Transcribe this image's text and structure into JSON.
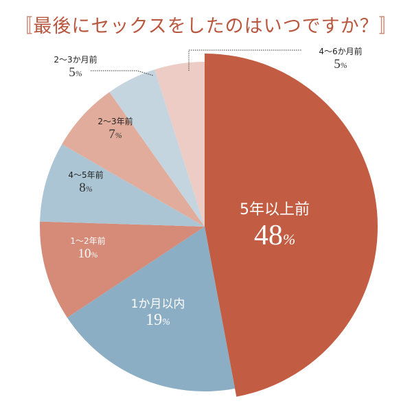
{
  "chart_data": {
    "type": "pie",
    "title": "最後にセックスをしたのはいつですか？",
    "title_brackets": [
      "〚",
      "〛"
    ],
    "percent_suffix": "%",
    "start": "top, clockwise",
    "slices": [
      {
        "label": "5年以上前",
        "value": 48,
        "color": "#c25c42"
      },
      {
        "label": "1か月以内",
        "value": 19,
        "color": "#8baec4"
      },
      {
        "label": "1〜2年前",
        "value": 10,
        "color": "#d58b78"
      },
      {
        "label": "4〜5年前",
        "value": 8,
        "color": "#abc5d4"
      },
      {
        "label": "2〜3年前",
        "value": 7,
        "color": "#e2ac9c"
      },
      {
        "label": "2〜3か月前",
        "value": 5,
        "color": "#c5d5df"
      },
      {
        "label": "4〜6か月前",
        "value": 5,
        "color": "#ecccc4"
      }
    ]
  }
}
